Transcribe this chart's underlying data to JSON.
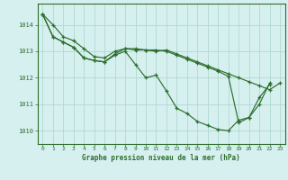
{
  "title": "Graphe pression niveau de la mer (hPa)",
  "bg_color": "#d6f0f0",
  "grid_color": "#b0d8d0",
  "line_color": "#2d6e2d",
  "xlim": [
    -0.5,
    23.5
  ],
  "ylim": [
    1009.5,
    1014.8
  ],
  "yticks": [
    1010,
    1011,
    1012,
    1013,
    1014
  ],
  "xticks": [
    0,
    1,
    2,
    3,
    4,
    5,
    6,
    7,
    8,
    9,
    10,
    11,
    12,
    13,
    14,
    15,
    16,
    17,
    18,
    19,
    20,
    21,
    22,
    23
  ],
  "series": [
    {
      "x": [
        0,
        1,
        2,
        3,
        4,
        5,
        6,
        7,
        8,
        9,
        10,
        11,
        12,
        13,
        14,
        15,
        16,
        17,
        18,
        19,
        20,
        21,
        22,
        23
      ],
      "y": [
        1014.4,
        1014.0,
        1013.55,
        1013.4,
        1013.1,
        1012.8,
        1012.75,
        1013.0,
        1013.1,
        1013.05,
        1013.05,
        1013.0,
        1013.05,
        1012.9,
        1012.75,
        1012.6,
        1012.45,
        1012.3,
        1012.15,
        1012.0,
        1011.85,
        1011.7,
        1011.55,
        1011.8
      ]
    },
    {
      "x": [
        0,
        1,
        2,
        3,
        4,
        5,
        6,
        7,
        8,
        9,
        10,
        11,
        12,
        13,
        14,
        15,
        16,
        17,
        18,
        19,
        20,
        21,
        22
      ],
      "y": [
        1014.4,
        1013.55,
        1013.35,
        1013.15,
        1012.75,
        1012.65,
        1012.6,
        1012.85,
        1013.0,
        1012.5,
        1012.0,
        1012.1,
        1011.5,
        1010.85,
        1010.65,
        1010.35,
        1010.2,
        1010.05,
        1010.0,
        1010.4,
        1010.5,
        1011.25,
        1011.75
      ]
    },
    {
      "x": [
        0,
        1,
        2,
        3,
        4,
        5,
        6,
        7,
        8,
        9,
        10,
        11,
        12,
        13,
        14,
        15,
        16,
        17,
        18,
        19,
        20,
        21,
        22
      ],
      "y": [
        1014.4,
        1013.55,
        1013.35,
        1013.15,
        1012.75,
        1012.65,
        1012.6,
        1012.9,
        1013.1,
        1013.1,
        1013.05,
        1013.05,
        1013.0,
        1012.85,
        1012.7,
        1012.55,
        1012.4,
        1012.25,
        1012.05,
        1010.3,
        1010.5,
        1011.0,
        1011.8
      ]
    }
  ]
}
